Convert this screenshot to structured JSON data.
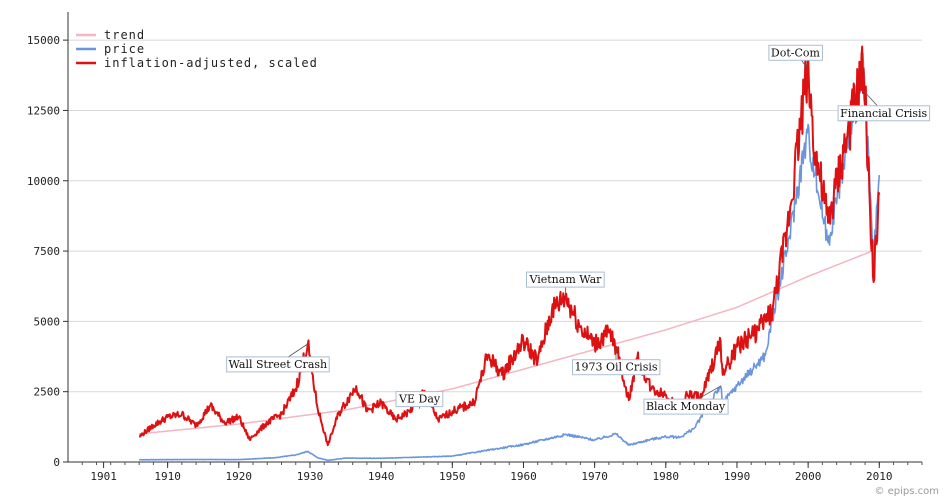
{
  "credit": "© epips.com",
  "chart_data": {
    "type": "line",
    "title": "",
    "xlabel": "",
    "ylabel": "",
    "xlim": [
      1896,
      2016
    ],
    "ylim": [
      0,
      16000
    ],
    "grid": true,
    "legend_position": "top-left",
    "x_ticks": [
      1901,
      1910,
      1920,
      1930,
      1940,
      1950,
      1960,
      1970,
      1980,
      1990,
      2000,
      2010
    ],
    "y_ticks": [
      0,
      2500,
      5000,
      7500,
      10000,
      12500,
      15000
    ],
    "series": [
      {
        "name": "trend",
        "color": "#f4b6c2",
        "x": [
          1906,
          1920,
          1935,
          1950,
          1960,
          1970,
          1980,
          1990,
          2000,
          2009
        ],
        "y": [
          1000,
          1350,
          1850,
          2600,
          3300,
          4000,
          4700,
          5500,
          6600,
          7500
        ]
      },
      {
        "name": "price",
        "color": "#6b96dd",
        "x": [
          1906,
          1910,
          1915,
          1920,
          1925,
          1928,
          1929.7,
          1931,
          1932.5,
          1935,
          1940,
          1945,
          1950,
          1955,
          1960,
          1966,
          1970,
          1973,
          1974.8,
          1978,
          1980,
          1982,
          1984,
          1987.7,
          1988,
          1990,
          1994,
          1995,
          1997,
          1999.9,
          2001,
          2002.8,
          2005,
          2007.8,
          2009.2,
          2010
        ],
        "y": [
          80,
          85,
          90,
          85,
          150,
          250,
          380,
          160,
          60,
          140,
          130,
          170,
          210,
          420,
          620,
          980,
          780,
          1000,
          600,
          810,
          900,
          880,
          1200,
          2700,
          2100,
          2700,
          3800,
          5100,
          7500,
          11700,
          10200,
          7800,
          10600,
          14000,
          7100,
          10200
        ]
      },
      {
        "name": "inflation-adjusted, scaled",
        "color": "#dd1111",
        "x": [
          1906,
          1908,
          1910,
          1912,
          1914,
          1916,
          1918,
          1920,
          1921.5,
          1924,
          1926,
          1928,
          1929.7,
          1931,
          1932.5,
          1934,
          1936.5,
          1938,
          1940,
          1942,
          1944,
          1946,
          1948,
          1950,
          1953,
          1955,
          1957,
          1960,
          1962,
          1964,
          1965.9,
          1968,
          1970,
          1972,
          1973,
          1974.8,
          1976,
          1978,
          1980,
          1982,
          1983,
          1985,
          1987.7,
          1988,
          1990,
          1993,
          1995,
          1997,
          1999.9,
          2001,
          2002.8,
          2005,
          2007.8,
          2009.2,
          2010
        ],
        "y": [
          900,
          1300,
          1600,
          1700,
          1300,
          2000,
          1400,
          1600,
          800,
          1400,
          1700,
          2600,
          4200,
          2000,
          600,
          1700,
          2700,
          1800,
          2100,
          1500,
          1800,
          2500,
          1500,
          1800,
          2100,
          3800,
          3100,
          4300,
          3600,
          5400,
          5900,
          4800,
          4200,
          4600,
          4100,
          2200,
          3700,
          2600,
          2400,
          1800,
          2400,
          2300,
          4300,
          3100,
          4100,
          4700,
          5400,
          8200,
          14000,
          11000,
          8500,
          11000,
          14000,
          6400,
          9500
        ]
      }
    ],
    "annotations": [
      {
        "label": "Wall Street Crash",
        "x": 1929.7,
        "y": 4200
      },
      {
        "label": "VE Day",
        "x": 1945.4,
        "y": 1900
      },
      {
        "label": "Vietnam War",
        "x": 1965.9,
        "y": 5900
      },
      {
        "label": "1973 Oil Crisis",
        "x": 1973.0,
        "y": 4100
      },
      {
        "label": "Black Monday",
        "x": 1987.7,
        "y": 2700
      },
      {
        "label": "Dot-Com",
        "x": 1999.9,
        "y": 14000
      },
      {
        "label": "Financial Crisis",
        "x": 2007.8,
        "y": 13200
      }
    ]
  }
}
